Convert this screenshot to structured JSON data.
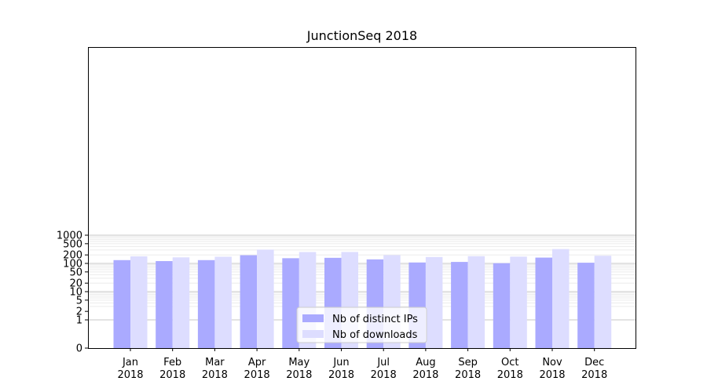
{
  "chart_data": {
    "type": "bar",
    "title": "JunctionSeq 2018",
    "xlabel": "",
    "ylabel": "",
    "y_scale": "symlog",
    "ylim": [
      0,
      1300
    ],
    "y_ticks": [
      {
        "value": 0,
        "label": "0"
      },
      {
        "value": 1,
        "label": "1"
      },
      {
        "value": 2,
        "label": "2"
      },
      {
        "value": 5,
        "label": "5"
      },
      {
        "value": 10,
        "label": "10"
      },
      {
        "value": 20,
        "label": "20"
      },
      {
        "value": 50,
        "label": "50"
      },
      {
        "value": 100,
        "label": "100"
      },
      {
        "value": 200,
        "label": "200"
      },
      {
        "value": 500,
        "label": "500"
      },
      {
        "value": 1000,
        "label": "1000"
      }
    ],
    "grid": true,
    "legend_position": "lower center",
    "categories": [
      {
        "month": "Jan",
        "year": "2018"
      },
      {
        "month": "Feb",
        "year": "2018"
      },
      {
        "month": "Mar",
        "year": "2018"
      },
      {
        "month": "Apr",
        "year": "2018"
      },
      {
        "month": "May",
        "year": "2018"
      },
      {
        "month": "Jun",
        "year": "2018"
      },
      {
        "month": "Jul",
        "year": "2018"
      },
      {
        "month": "Aug",
        "year": "2018"
      },
      {
        "month": "Sep",
        "year": "2018"
      },
      {
        "month": "Oct",
        "year": "2018"
      },
      {
        "month": "Nov",
        "year": "2018"
      },
      {
        "month": "Dec",
        "year": "2018"
      }
    ],
    "series": [
      {
        "name": "Nb of distinct IPs",
        "color": "#aaaaff",
        "values": [
          131,
          121,
          131,
          195,
          153,
          158,
          139,
          108,
          113,
          102,
          161,
          106
        ]
      },
      {
        "name": "Nb of downloads",
        "color": "#ddddff",
        "values": [
          178,
          164,
          173,
          308,
          254,
          255,
          196,
          169,
          181,
          174,
          323,
          187
        ]
      }
    ]
  }
}
